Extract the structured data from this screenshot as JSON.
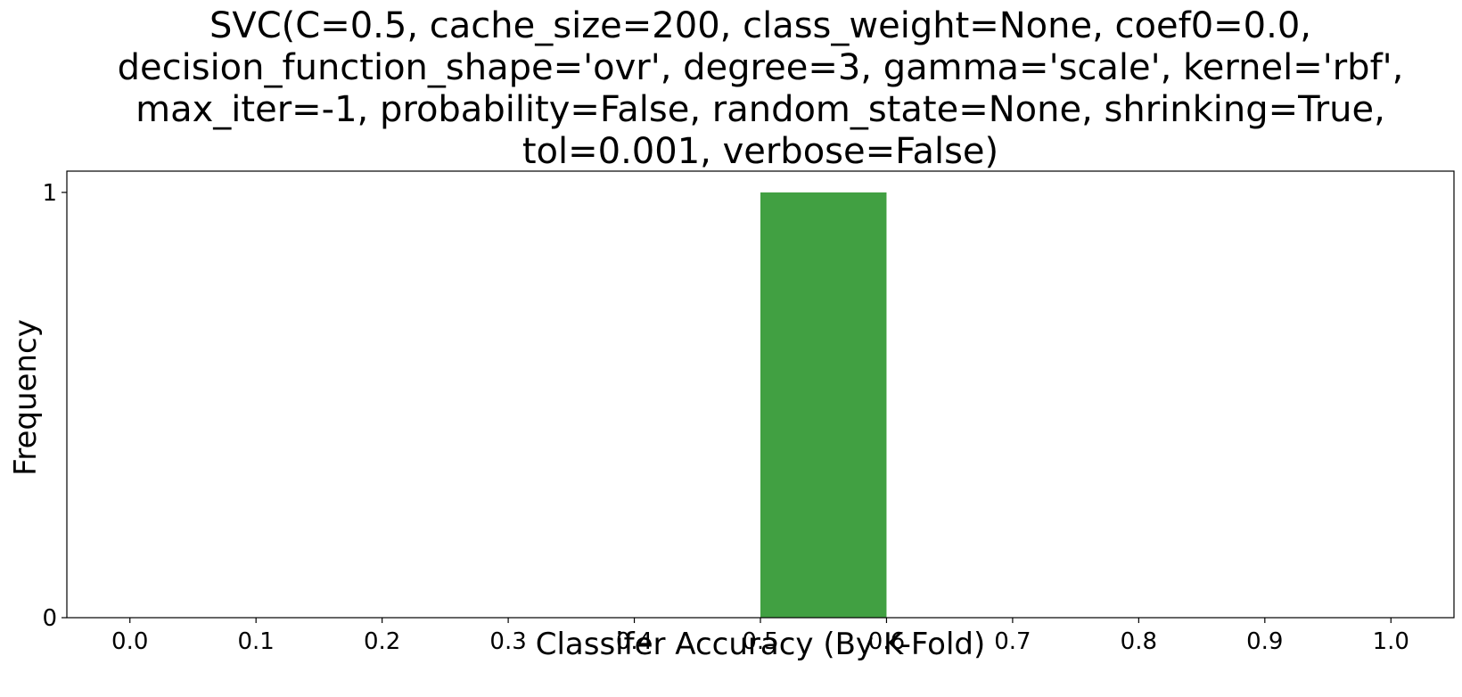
{
  "chart_data": {
    "type": "bar",
    "title_lines": [
      "SVC(C=0.5, cache_size=200, class_weight=None, coef0=0.0,",
      "decision_function_shape='ovr', degree=3, gamma='scale', kernel='rbf',",
      "max_iter=-1, probability=False, random_state=None, shrinking=True,",
      "tol=0.001, verbose=False)"
    ],
    "xlabel": "Classifer Accuracy (By K-Fold)",
    "ylabel": "Frequency",
    "xlim": [
      -0.05,
      1.05
    ],
    "ylim": [
      0,
      1.05
    ],
    "x_ticks": [
      "0.0",
      "0.1",
      "0.2",
      "0.3",
      "0.4",
      "0.5",
      "0.6",
      "0.7",
      "0.8",
      "0.9",
      "1.0"
    ],
    "y_ticks": [
      "0",
      "1"
    ],
    "bins": [
      {
        "start": 0.0,
        "end": 0.1,
        "value": 0
      },
      {
        "start": 0.1,
        "end": 0.2,
        "value": 0
      },
      {
        "start": 0.2,
        "end": 0.3,
        "value": 0
      },
      {
        "start": 0.3,
        "end": 0.4,
        "value": 0
      },
      {
        "start": 0.4,
        "end": 0.5,
        "value": 0
      },
      {
        "start": 0.5,
        "end": 0.6,
        "value": 1
      },
      {
        "start": 0.6,
        "end": 0.7,
        "value": 0
      },
      {
        "start": 0.7,
        "end": 0.8,
        "value": 0
      },
      {
        "start": 0.8,
        "end": 0.9,
        "value": 0
      },
      {
        "start": 0.9,
        "end": 1.0,
        "value": 0
      }
    ],
    "bar_color": "#41a042",
    "grid": false,
    "legend": "none"
  }
}
